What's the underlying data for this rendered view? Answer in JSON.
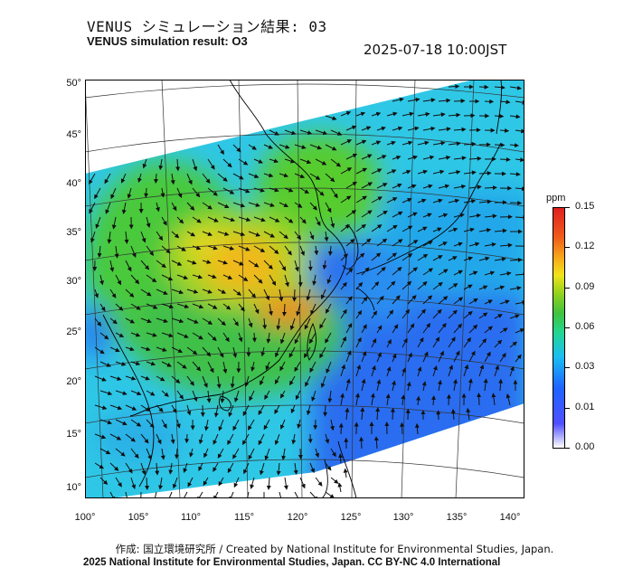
{
  "header": {
    "title_jp": "VENUS シミュレーション結果: 03",
    "title_en": "VENUS simulation result: O3",
    "timestamp": "2025-07-18 10:00JST"
  },
  "map": {
    "lat_ticks": [
      "50°",
      "45°",
      "40°",
      "35°",
      "30°",
      "25°",
      "20°",
      "15°",
      "10°"
    ],
    "lon_ticks": [
      "100°",
      "105°",
      "110°",
      "115°",
      "120°",
      "125°",
      "130°",
      "135°",
      "140°"
    ]
  },
  "colorbar": {
    "unit": "ppm",
    "ticks": [
      "0.15",
      "0.12",
      "0.09",
      "0.06",
      "0.03",
      "0.01",
      "0.00"
    ],
    "colors": {
      "high": "#e02020",
      "mid_high": "#f7a21a",
      "mid": "#3fc23f",
      "low": "#19bff2",
      "lowest": "#1e64ff",
      "zero": "#ffffff"
    }
  },
  "footer": {
    "credit": "作成: 国立環境研究所 / Created by National Institute for Environmental Studies, Japan.",
    "license": "2025 National Institute for Environmental Studies, Japan. CC BY-NC 4.0 International"
  }
}
